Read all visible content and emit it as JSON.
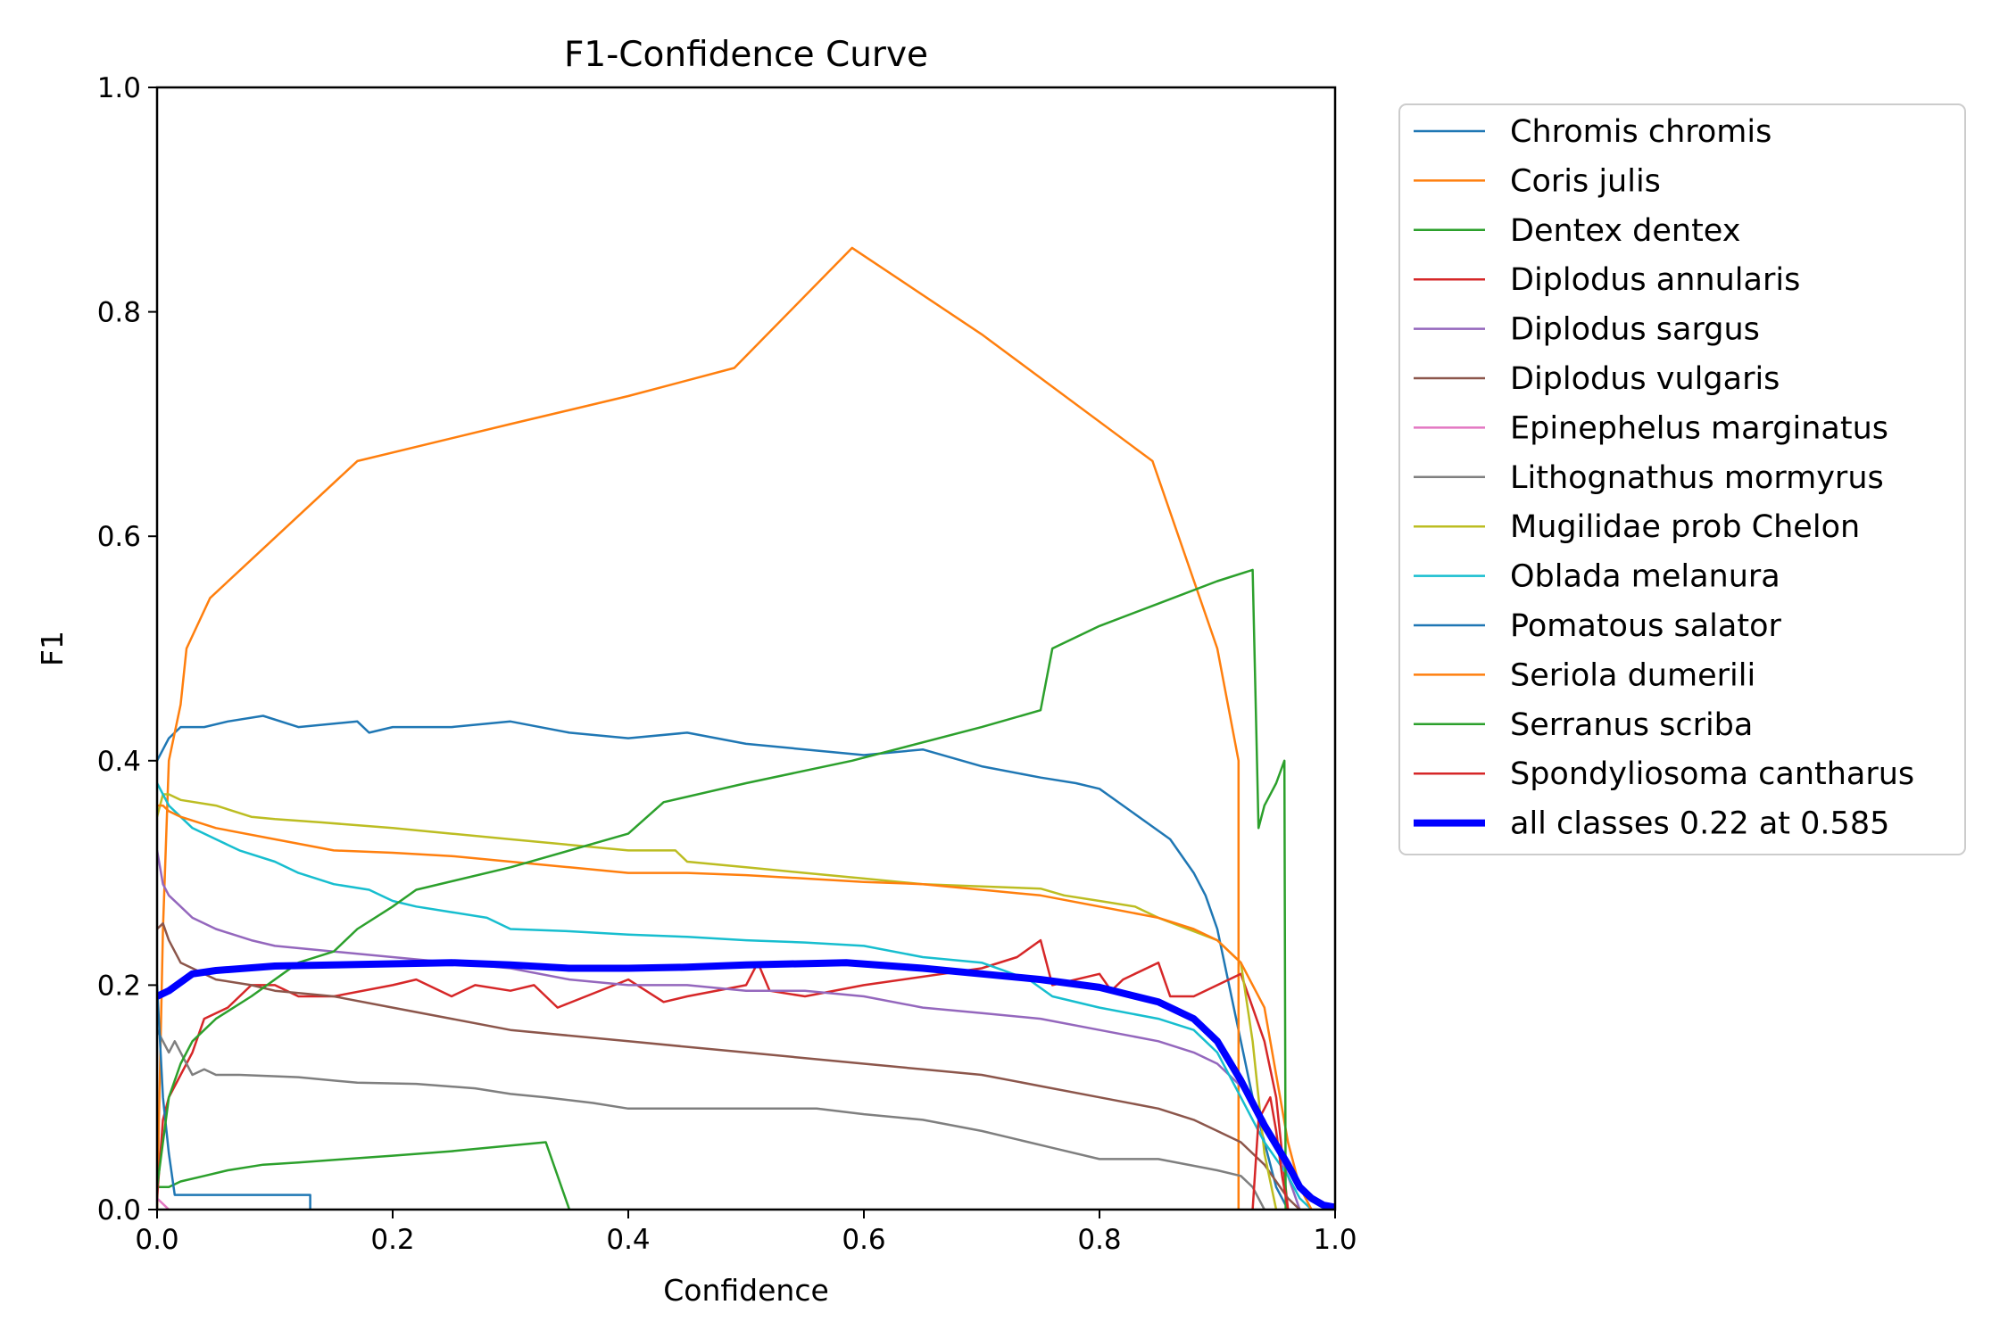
{
  "chart_data": {
    "type": "line",
    "title": "F1-Confidence Curve",
    "xlabel": "Confidence",
    "ylabel": "F1",
    "xlim": [
      0,
      1
    ],
    "ylim": [
      0,
      1
    ],
    "xticks": [
      "0.0",
      "0.2",
      "0.4",
      "0.6",
      "0.8",
      "1.0"
    ],
    "yticks": [
      "0.0",
      "0.2",
      "0.4",
      "0.6",
      "0.8",
      "1.0"
    ],
    "grid": false,
    "legend_position": "outside-right",
    "series": [
      {
        "name": "Chromis chromis",
        "color": "#1f77b4",
        "width": 2.5,
        "x": [
          0,
          0.005,
          0.01,
          0.02,
          0.04,
          0.06,
          0.09,
          0.12,
          0.17,
          0.18,
          0.2,
          0.25,
          0.3,
          0.35,
          0.4,
          0.45,
          0.5,
          0.55,
          0.6,
          0.65,
          0.7,
          0.75,
          0.78,
          0.8,
          0.82,
          0.84,
          0.86,
          0.88,
          0.89,
          0.9,
          0.91,
          0.92,
          0.93,
          0.94,
          0.95,
          0.96
        ],
        "y": [
          0.4,
          0.41,
          0.42,
          0.43,
          0.43,
          0.435,
          0.44,
          0.43,
          0.435,
          0.425,
          0.43,
          0.43,
          0.435,
          0.425,
          0.42,
          0.425,
          0.415,
          0.41,
          0.405,
          0.41,
          0.395,
          0.385,
          0.38,
          0.375,
          0.36,
          0.345,
          0.33,
          0.3,
          0.28,
          0.25,
          0.2,
          0.15,
          0.1,
          0.06,
          0.02,
          0
        ]
      },
      {
        "name": "Coris julis",
        "color": "#ff7f0e",
        "width": 2.5,
        "x": [
          0,
          0.005,
          0.01,
          0.02,
          0.025,
          0.045,
          0.17,
          0.3,
          0.4,
          0.49,
          0.59,
          0.7,
          0.845,
          0.9,
          0.918,
          0.918
        ],
        "y": [
          0,
          0.25,
          0.4,
          0.45,
          0.5,
          0.545,
          0.667,
          0.7,
          0.725,
          0.75,
          0.857,
          0.78,
          0.667,
          0.5,
          0.4,
          0
        ]
      },
      {
        "name": "Dentex dentex",
        "color": "#2ca02c",
        "width": 2.5,
        "x": [
          0,
          0.01,
          0.02,
          0.04,
          0.06,
          0.09,
          0.12,
          0.16,
          0.2,
          0.25,
          0.3,
          0.33,
          0.35
        ],
        "y": [
          0.02,
          0.02,
          0.025,
          0.03,
          0.035,
          0.04,
          0.042,
          0.045,
          0.048,
          0.052,
          0.057,
          0.06,
          0
        ]
      },
      {
        "name": "Diplodus annularis",
        "color": "#d62728",
        "width": 2.5,
        "x": [
          0,
          0.005,
          0.01,
          0.02,
          0.03,
          0.04,
          0.06,
          0.08,
          0.1,
          0.12,
          0.15,
          0.2,
          0.22,
          0.25,
          0.27,
          0.3,
          0.32,
          0.34,
          0.4,
          0.43,
          0.45,
          0.5,
          0.51,
          0.52,
          0.55,
          0.6,
          0.7,
          0.73,
          0.75,
          0.76,
          0.8,
          0.81,
          0.82,
          0.85,
          0.86,
          0.88,
          0.9,
          0.92,
          0.94,
          0.95,
          0.96
        ],
        "y": [
          0.01,
          0.08,
          0.1,
          0.12,
          0.14,
          0.17,
          0.18,
          0.2,
          0.2,
          0.19,
          0.19,
          0.2,
          0.205,
          0.19,
          0.2,
          0.195,
          0.2,
          0.18,
          0.205,
          0.185,
          0.19,
          0.2,
          0.22,
          0.195,
          0.19,
          0.2,
          0.215,
          0.225,
          0.24,
          0.2,
          0.21,
          0.195,
          0.205,
          0.22,
          0.19,
          0.19,
          0.2,
          0.21,
          0.15,
          0.1,
          0
        ]
      },
      {
        "name": "Diplodus sargus",
        "color": "#9467bd",
        "width": 2.5,
        "x": [
          0,
          0.005,
          0.01,
          0.02,
          0.03,
          0.05,
          0.08,
          0.1,
          0.15,
          0.2,
          0.25,
          0.3,
          0.35,
          0.4,
          0.45,
          0.5,
          0.55,
          0.6,
          0.65,
          0.7,
          0.75,
          0.8,
          0.85,
          0.88,
          0.9,
          0.92,
          0.94,
          0.96,
          0.97
        ],
        "y": [
          0.32,
          0.29,
          0.28,
          0.27,
          0.26,
          0.25,
          0.24,
          0.235,
          0.23,
          0.225,
          0.22,
          0.215,
          0.205,
          0.2,
          0.2,
          0.195,
          0.195,
          0.19,
          0.18,
          0.175,
          0.17,
          0.16,
          0.15,
          0.14,
          0.13,
          0.11,
          0.08,
          0.03,
          0
        ]
      },
      {
        "name": "Diplodus vulgaris",
        "color": "#8c564b",
        "width": 2.5,
        "x": [
          0,
          0.005,
          0.01,
          0.02,
          0.03,
          0.05,
          0.08,
          0.1,
          0.15,
          0.2,
          0.25,
          0.3,
          0.35,
          0.4,
          0.45,
          0.5,
          0.55,
          0.6,
          0.65,
          0.7,
          0.75,
          0.8,
          0.85,
          0.88,
          0.9,
          0.92,
          0.94,
          0.96,
          0.97
        ],
        "y": [
          0.25,
          0.255,
          0.24,
          0.22,
          0.215,
          0.205,
          0.2,
          0.195,
          0.19,
          0.18,
          0.17,
          0.16,
          0.155,
          0.15,
          0.145,
          0.14,
          0.135,
          0.13,
          0.125,
          0.12,
          0.11,
          0.1,
          0.09,
          0.08,
          0.07,
          0.06,
          0.04,
          0.01,
          0
        ]
      },
      {
        "name": "Epinephelus marginatus",
        "color": "#e377c2",
        "width": 2.5,
        "x": [
          0,
          0.005,
          0.01
        ],
        "y": [
          0.01,
          0.005,
          0
        ]
      },
      {
        "name": "Lithognathus mormyrus",
        "color": "#7f7f7f",
        "width": 2.5,
        "x": [
          0,
          0.005,
          0.01,
          0.015,
          0.02,
          0.025,
          0.03,
          0.04,
          0.05,
          0.07,
          0.12,
          0.17,
          0.22,
          0.27,
          0.3,
          0.33,
          0.37,
          0.4,
          0.45,
          0.5,
          0.56,
          0.6,
          0.65,
          0.7,
          0.74,
          0.76,
          0.8,
          0.85,
          0.9,
          0.92,
          0.93,
          0.94
        ],
        "y": [
          0.16,
          0.15,
          0.14,
          0.15,
          0.14,
          0.13,
          0.12,
          0.125,
          0.12,
          0.12,
          0.118,
          0.113,
          0.112,
          0.108,
          0.103,
          0.1,
          0.095,
          0.09,
          0.09,
          0.09,
          0.09,
          0.085,
          0.08,
          0.07,
          0.06,
          0.055,
          0.045,
          0.045,
          0.035,
          0.03,
          0.02,
          0
        ]
      },
      {
        "name": "Mugilidae prob Chelon",
        "color": "#bcbd22",
        "width": 2.5,
        "x": [
          0,
          0.005,
          0.01,
          0.02,
          0.05,
          0.08,
          0.1,
          0.14,
          0.2,
          0.25,
          0.3,
          0.35,
          0.4,
          0.44,
          0.45,
          0.5,
          0.55,
          0.6,
          0.65,
          0.7,
          0.75,
          0.77,
          0.8,
          0.83,
          0.85,
          0.9,
          0.91,
          0.92,
          0.93,
          0.94,
          0.95
        ],
        "y": [
          0.35,
          0.37,
          0.37,
          0.365,
          0.36,
          0.35,
          0.348,
          0.345,
          0.34,
          0.335,
          0.33,
          0.325,
          0.32,
          0.32,
          0.31,
          0.305,
          0.3,
          0.295,
          0.29,
          0.288,
          0.286,
          0.28,
          0.275,
          0.27,
          0.26,
          0.24,
          0.23,
          0.22,
          0.15,
          0.05,
          0
        ]
      },
      {
        "name": "Oblada melanura",
        "color": "#17becf",
        "width": 2.5,
        "x": [
          0,
          0.005,
          0.01,
          0.02,
          0.03,
          0.05,
          0.07,
          0.1,
          0.12,
          0.15,
          0.18,
          0.2,
          0.22,
          0.25,
          0.28,
          0.3,
          0.35,
          0.4,
          0.45,
          0.5,
          0.55,
          0.6,
          0.65,
          0.7,
          0.74,
          0.76,
          0.8,
          0.85,
          0.88,
          0.9,
          0.92,
          0.94,
          0.96,
          0.97,
          0.98
        ],
        "y": [
          0.38,
          0.37,
          0.36,
          0.35,
          0.34,
          0.33,
          0.32,
          0.31,
          0.3,
          0.29,
          0.285,
          0.275,
          0.27,
          0.265,
          0.26,
          0.25,
          0.248,
          0.245,
          0.243,
          0.24,
          0.238,
          0.235,
          0.225,
          0.22,
          0.205,
          0.19,
          0.18,
          0.17,
          0.16,
          0.14,
          0.1,
          0.06,
          0.03,
          0.01,
          0
        ]
      },
      {
        "name": "Pomatous salator",
        "color": "#1f77b4",
        "width": 2.5,
        "x": [
          0,
          0.005,
          0.01,
          0.015,
          0.02,
          0.05,
          0.1,
          0.13,
          0.13
        ],
        "y": [
          0.2,
          0.1,
          0.05,
          0.013,
          0.013,
          0.013,
          0.013,
          0.013,
          0
        ]
      },
      {
        "name": "Seriola dumerili",
        "color": "#ff7f0e",
        "width": 2.5,
        "x": [
          0,
          0.005,
          0.01,
          0.02,
          0.05,
          0.1,
          0.15,
          0.2,
          0.25,
          0.3,
          0.35,
          0.4,
          0.45,
          0.5,
          0.55,
          0.6,
          0.65,
          0.7,
          0.75,
          0.8,
          0.85,
          0.88,
          0.9,
          0.92,
          0.94,
          0.95,
          0.96,
          0.97,
          0.98
        ],
        "y": [
          0.36,
          0.36,
          0.355,
          0.35,
          0.34,
          0.33,
          0.32,
          0.318,
          0.315,
          0.31,
          0.305,
          0.3,
          0.3,
          0.298,
          0.295,
          0.292,
          0.29,
          0.285,
          0.28,
          0.27,
          0.26,
          0.25,
          0.24,
          0.22,
          0.18,
          0.12,
          0.06,
          0.02,
          0
        ]
      },
      {
        "name": "Serranus scriba",
        "color": "#2ca02c",
        "width": 2.5,
        "x": [
          0,
          0.005,
          0.01,
          0.02,
          0.03,
          0.05,
          0.08,
          0.12,
          0.15,
          0.17,
          0.2,
          0.22,
          0.3,
          0.4,
          0.43,
          0.5,
          0.59,
          0.7,
          0.75,
          0.76,
          0.8,
          0.85,
          0.9,
          0.93,
          0.935,
          0.94,
          0.95,
          0.957,
          0.958
        ],
        "y": [
          0.02,
          0.06,
          0.1,
          0.13,
          0.15,
          0.17,
          0.19,
          0.22,
          0.23,
          0.25,
          0.27,
          0.285,
          0.305,
          0.335,
          0.363,
          0.38,
          0.4,
          0.43,
          0.445,
          0.5,
          0.52,
          0.54,
          0.56,
          0.57,
          0.34,
          0.36,
          0.38,
          0.4,
          0
        ]
      },
      {
        "name": "Spondyliosoma cantharus",
        "color": "#d62728",
        "width": 2.5,
        "x": [
          0.93,
          0.935,
          0.94,
          0.945,
          0.95,
          0.955,
          0.96
        ],
        "y": [
          0,
          0.08,
          0.09,
          0.1,
          0.07,
          0.03,
          0
        ]
      },
      {
        "name": "all classes 0.22 at 0.585",
        "color": "#0000ff",
        "width": 8,
        "x": [
          0,
          0.01,
          0.03,
          0.05,
          0.1,
          0.15,
          0.2,
          0.25,
          0.3,
          0.35,
          0.4,
          0.45,
          0.5,
          0.585,
          0.65,
          0.7,
          0.75,
          0.8,
          0.85,
          0.88,
          0.9,
          0.92,
          0.94,
          0.96,
          0.97,
          0.98,
          0.99,
          1.0
        ],
        "y": [
          0.19,
          0.195,
          0.21,
          0.213,
          0.217,
          0.218,
          0.219,
          0.22,
          0.218,
          0.215,
          0.215,
          0.216,
          0.218,
          0.22,
          0.215,
          0.21,
          0.205,
          0.198,
          0.185,
          0.17,
          0.15,
          0.115,
          0.075,
          0.04,
          0.02,
          0.01,
          0.004,
          0.002
        ]
      }
    ]
  }
}
